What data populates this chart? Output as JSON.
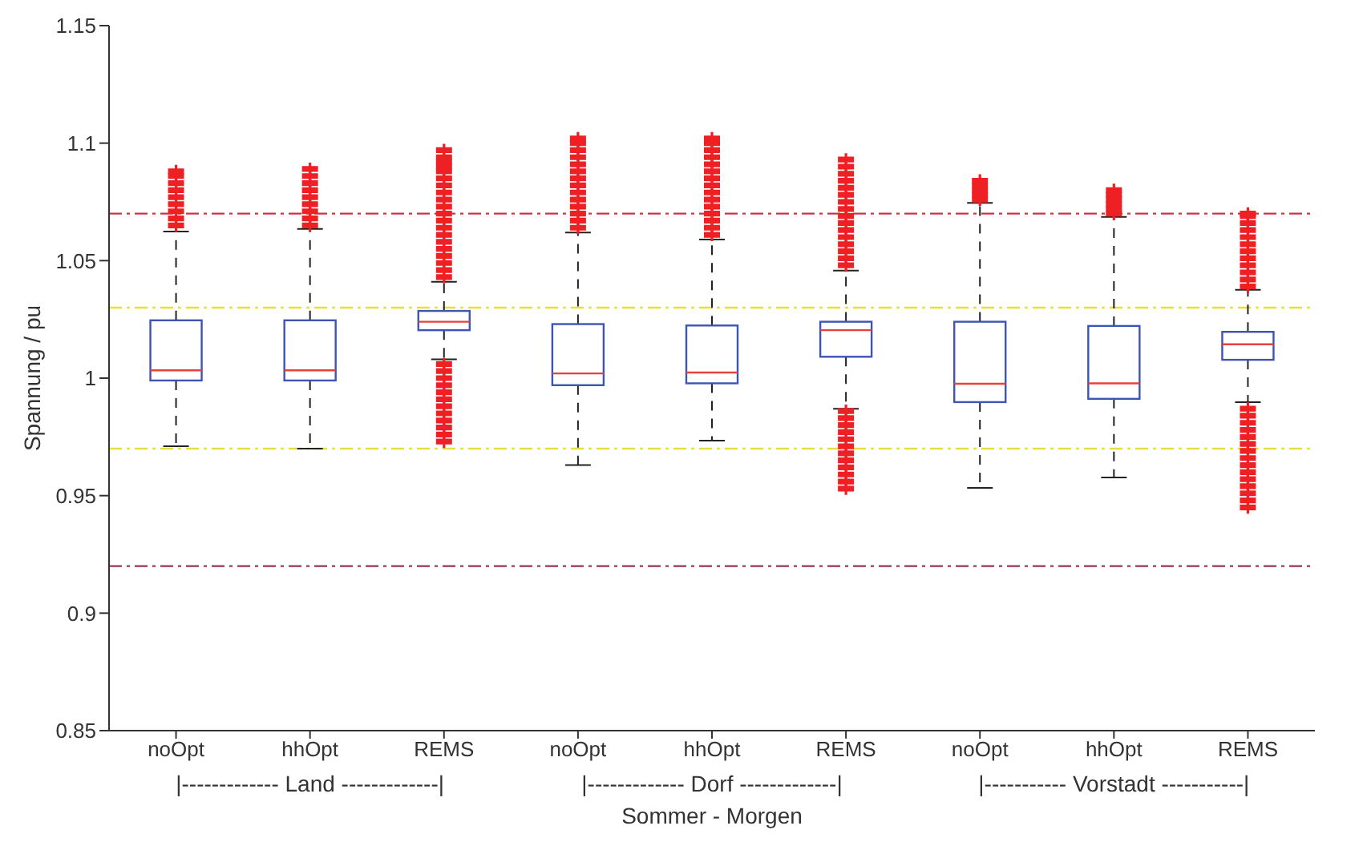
{
  "chart_data": {
    "type": "box",
    "xlabel": "Sommer - Morgen",
    "ylabel": "Spannung / pu",
    "categories": [
      "noOpt",
      "hhOpt",
      "REMS",
      "noOpt",
      "hhOpt",
      "REMS",
      "noOpt",
      "hhOpt",
      "REMS"
    ],
    "ylim": [
      0.85,
      1.15
    ],
    "yticks": [
      0.85,
      0.9,
      0.95,
      1,
      1.05,
      1.1,
      1.15
    ],
    "series": [
      {
        "color": "#3c54b4",
        "boxes": [
          {
            "low": 0.971,
            "q1": 0.999,
            "median": 1.0033,
            "q3": 1.0246,
            "high": 1.0624,
            "outliers": [
              1.065,
              1.068,
              1.071,
              1.074,
              1.077,
              1.08,
              1.083,
              1.086,
              1.088
            ]
          },
          {
            "low": 0.97,
            "q1": 0.999,
            "median": 1.0033,
            "q3": 1.0246,
            "high": 1.0635,
            "outliers": [
              1.065,
              1.068,
              1.071,
              1.074,
              1.077,
              1.08,
              1.083,
              1.086,
              1.089
            ]
          },
          {
            "low": 1.008,
            "q1": 1.0204,
            "median": 1.024,
            "q3": 1.0286,
            "high": 1.041,
            "outliers": [
              1.043,
              1.046,
              1.049,
              1.052,
              1.055,
              1.058,
              1.061,
              1.064,
              1.067,
              1.07,
              1.073,
              1.076,
              1.079,
              1.082,
              1.085,
              1.088,
              1.09,
              1.092,
              1.094,
              1.097,
              0.973,
              0.976,
              0.979,
              0.982,
              0.985,
              0.988,
              0.991,
              0.994,
              0.997,
              1.0,
              1.003,
              1.006
            ]
          },
          {
            "low": 0.963,
            "q1": 0.997,
            "median": 1.002,
            "q3": 1.023,
            "high": 1.062,
            "outliers": [
              1.064,
              1.067,
              1.07,
              1.073,
              1.076,
              1.079,
              1.082,
              1.085,
              1.088,
              1.091,
              1.094,
              1.097,
              1.1,
              1.102
            ]
          },
          {
            "low": 0.9734,
            "q1": 0.9978,
            "median": 1.0024,
            "q3": 1.0224,
            "high": 1.059,
            "outliers": [
              1.061,
              1.064,
              1.067,
              1.07,
              1.073,
              1.076,
              1.079,
              1.082,
              1.085,
              1.088,
              1.091,
              1.094,
              1.097,
              1.1,
              1.102
            ]
          },
          {
            "low": 0.987,
            "q1": 1.0091,
            "median": 1.0204,
            "q3": 1.024,
            "high": 1.0458,
            "outliers": [
              1.048,
              1.051,
              1.054,
              1.057,
              1.06,
              1.063,
              1.066,
              1.069,
              1.072,
              1.075,
              1.078,
              1.081,
              1.084,
              1.087,
              1.09,
              1.093,
              0.953,
              0.956,
              0.959,
              0.962,
              0.965,
              0.968,
              0.971,
              0.974,
              0.977,
              0.98,
              0.983,
              0.986
            ]
          },
          {
            "low": 0.9533,
            "q1": 0.9898,
            "median": 0.9976,
            "q3": 1.024,
            "high": 1.0746,
            "outliers": [
              1.076,
              1.078,
              1.08,
              1.082,
              1.084
            ]
          },
          {
            "low": 0.9577,
            "q1": 0.9912,
            "median": 0.9978,
            "q3": 1.0222,
            "high": 1.0686,
            "outliers": [
              1.07,
              1.072,
              1.074,
              1.076,
              1.078,
              1.08
            ]
          },
          {
            "low": 0.9898,
            "q1": 1.0078,
            "median": 1.0144,
            "q3": 1.0197,
            "high": 1.0376,
            "outliers": [
              1.039,
              1.042,
              1.045,
              1.048,
              1.051,
              1.054,
              1.057,
              1.06,
              1.063,
              1.066,
              1.069,
              1.07,
              0.945,
              0.948,
              0.951,
              0.954,
              0.957,
              0.96,
              0.963,
              0.966,
              0.969,
              0.972,
              0.975,
              0.978,
              0.981,
              0.984,
              0.987
            ]
          }
        ]
      }
    ],
    "ref_lines": [
      {
        "axis": "y",
        "value": 1.07,
        "color": "#c8364a",
        "line_style": "dashdot"
      },
      {
        "axis": "y",
        "value": 1.03,
        "color": "#e6e03a",
        "line_style": "dashdot"
      },
      {
        "axis": "y",
        "value": 0.97,
        "color": "#e6e03a",
        "line_style": "dashdot"
      },
      {
        "axis": "y",
        "value": 0.92,
        "color": "#a03058",
        "line_style": "dashdot"
      }
    ],
    "annotations": [
      "|------------- Land -------------|",
      "|------------- Dorf -------------|",
      "|----------- Vorstadt -----------|"
    ],
    "grid": false
  }
}
